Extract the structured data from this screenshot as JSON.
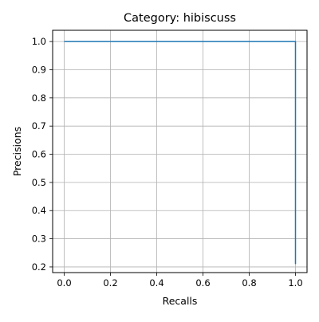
{
  "chart_data": {
    "type": "line",
    "title": "Category: hibiscuss",
    "xlabel": "Recalls",
    "ylabel": "Precisions",
    "xlim": [
      -0.05,
      1.05
    ],
    "ylim": [
      0.18,
      1.04
    ],
    "xticks": [
      0.0,
      0.2,
      0.4,
      0.6,
      0.8,
      1.0
    ],
    "xtick_labels": [
      "0.0",
      "0.2",
      "0.4",
      "0.6",
      "0.8",
      "1.0"
    ],
    "yticks": [
      0.2,
      0.3,
      0.4,
      0.5,
      0.6,
      0.7,
      0.8,
      0.9,
      1.0
    ],
    "ytick_labels": [
      "0.2",
      "0.3",
      "0.4",
      "0.5",
      "0.6",
      "0.7",
      "0.8",
      "0.9",
      "1.0"
    ],
    "grid": true,
    "series": [
      {
        "color": "#1f77b4",
        "x": [
          0.0,
          1.0,
          1.0
        ],
        "y": [
          1.0,
          1.0,
          0.21
        ]
      }
    ]
  }
}
